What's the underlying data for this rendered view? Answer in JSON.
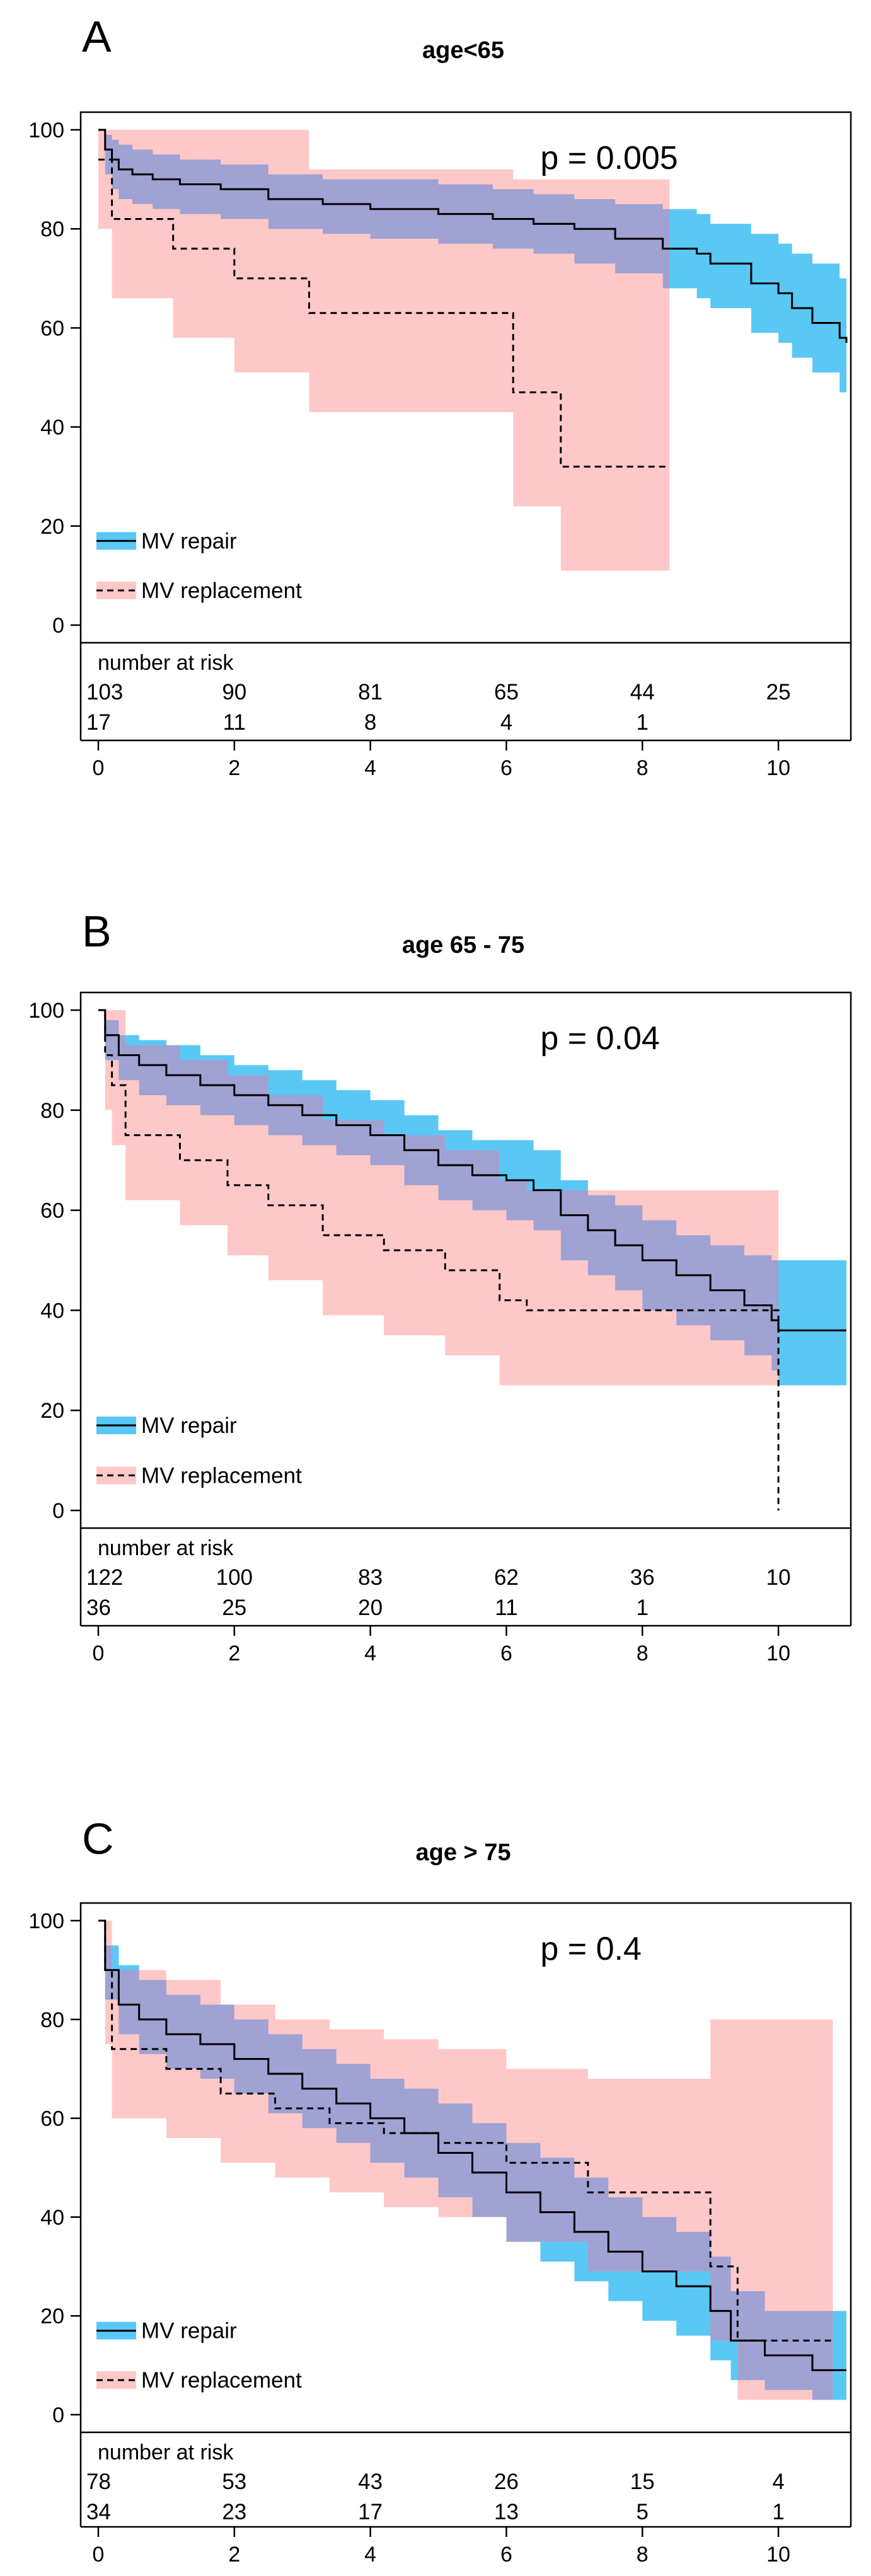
{
  "chart_data": [
    {
      "type": "line",
      "panel_label": "A",
      "title": "age<65",
      "p_value_text": "p = 0.005",
      "xlim": [
        0,
        11
      ],
      "ylim": [
        0,
        100
      ],
      "x_ticks": [
        0,
        2,
        4,
        6,
        8,
        10
      ],
      "y_ticks": [
        0,
        20,
        40,
        60,
        80,
        100
      ],
      "legend": {
        "position": "bottom-left",
        "entries": [
          "MV repair",
          "MV replacement"
        ]
      },
      "colors": {
        "repair_band": "#59C8F5",
        "replacement_band": "#FFC8C8",
        "overlap": "#9FA2D2"
      },
      "series": [
        {
          "name": "MV repair",
          "line_style": "solid",
          "x": [
            0,
            0.1,
            0.2,
            0.3,
            0.5,
            0.8,
            1.2,
            1.8,
            2.5,
            3.3,
            4.0,
            5.0,
            5.8,
            6.4,
            7.0,
            7.6,
            8.3,
            8.8,
            9.0,
            9.6,
            10.0,
            10.2,
            10.5,
            10.9,
            11.0
          ],
          "y": [
            100,
            96,
            94,
            92,
            91,
            90,
            89,
            88,
            86,
            85,
            84,
            83,
            82,
            81,
            80,
            78,
            76,
            75,
            73,
            69,
            67,
            64,
            61,
            58,
            57
          ],
          "lower": [
            100,
            91,
            88,
            86,
            85,
            84,
            83,
            82,
            80,
            79,
            78,
            77,
            76,
            75,
            73,
            71,
            68,
            66,
            64,
            59,
            57,
            54,
            51,
            47,
            46
          ],
          "upper": [
            100,
            99,
            98,
            97,
            96,
            95,
            94,
            93,
            91,
            90,
            90,
            89,
            88,
            87,
            86,
            85,
            84,
            83,
            81,
            79,
            77,
            75,
            73,
            70,
            69
          ]
        },
        {
          "name": "MV replacement",
          "line_style": "dashed",
          "x": [
            0,
            0.2,
            1.1,
            2.0,
            3.1,
            4.7,
            6.1,
            6.8,
            8.4
          ],
          "y": [
            94,
            82,
            76,
            70,
            63,
            63,
            47,
            32,
            32
          ],
          "lower": [
            80,
            66,
            58,
            51,
            43,
            43,
            24,
            11,
            11
          ],
          "upper": [
            100,
            100,
            100,
            100,
            92,
            92,
            90,
            90,
            90
          ]
        }
      ],
      "risk_table": {
        "title": "number at risk",
        "times": [
          0,
          2,
          4,
          6,
          8,
          10
        ],
        "rows": [
          {
            "group": "MV repair",
            "counts": [
              "103",
              "90",
              "81",
              "65",
              "44",
              "25"
            ]
          },
          {
            "group": "MV replacement",
            "counts": [
              "17",
              "11",
              "8",
              "4",
              "1"
            ]
          }
        ]
      }
    },
    {
      "type": "line",
      "panel_label": "B",
      "title": "age 65 - 75",
      "p_value_text": "p = 0.04",
      "xlim": [
        0,
        11
      ],
      "ylim": [
        0,
        100
      ],
      "x_ticks": [
        0,
        2,
        4,
        6,
        8,
        10
      ],
      "y_ticks": [
        0,
        20,
        40,
        60,
        80,
        100
      ],
      "legend": {
        "position": "bottom-left",
        "entries": [
          "MV repair",
          "MV replacement"
        ]
      },
      "colors": {
        "repair_band": "#59C8F5",
        "replacement_band": "#FFC8C8",
        "overlap": "#9FA2D2"
      },
      "series": [
        {
          "name": "MV repair",
          "line_style": "solid",
          "x": [
            0,
            0.1,
            0.3,
            0.6,
            1.0,
            1.5,
            2.0,
            2.5,
            3.0,
            3.5,
            4.0,
            4.5,
            5.0,
            5.5,
            6.0,
            6.4,
            6.8,
            7.2,
            7.6,
            8.0,
            8.5,
            9.0,
            9.5,
            9.9,
            10.0,
            11.0
          ],
          "y": [
            100,
            95,
            91,
            89,
            87,
            85,
            83,
            81,
            79,
            77,
            75,
            72,
            69,
            67,
            66,
            64,
            59,
            56,
            53,
            50,
            47,
            44,
            41,
            38,
            36,
            36
          ],
          "lower": [
            100,
            90,
            86,
            83,
            81,
            79,
            77,
            75,
            73,
            71,
            69,
            65,
            62,
            60,
            58,
            56,
            50,
            47,
            44,
            40,
            37,
            34,
            31,
            28,
            25,
            25
          ],
          "upper": [
            100,
            98,
            95,
            94,
            93,
            91,
            89,
            88,
            86,
            84,
            82,
            79,
            76,
            74,
            74,
            72,
            66,
            63,
            61,
            58,
            55,
            53,
            51,
            50,
            50,
            50
          ]
        },
        {
          "name": "MV replacement",
          "line_style": "dashed",
          "x": [
            0,
            0.1,
            0.2,
            0.4,
            1.2,
            1.9,
            2.5,
            3.3,
            4.2,
            5.1,
            5.9,
            6.3,
            10.0
          ],
          "y": [
            100,
            91,
            85,
            75,
            70,
            65,
            61,
            55,
            52,
            48,
            42,
            40,
            0
          ],
          "lower": [
            100,
            80,
            73,
            62,
            57,
            51,
            46,
            39,
            35,
            31,
            25,
            25,
            25
          ],
          "upper": [
            100,
            100,
            100,
            93,
            90,
            87,
            83,
            78,
            75,
            72,
            66,
            64,
            64
          ]
        }
      ],
      "risk_table": {
        "title": "number at risk",
        "times": [
          0,
          2,
          4,
          6,
          8,
          10
        ],
        "rows": [
          {
            "group": "MV repair",
            "counts": [
              "122",
              "100",
              "83",
              "62",
              "36",
              "10"
            ]
          },
          {
            "group": "MV replacement",
            "counts": [
              "36",
              "25",
              "20",
              "11",
              "1"
            ]
          }
        ]
      }
    },
    {
      "type": "line",
      "panel_label": "C",
      "title": "age > 75",
      "p_value_text": "p = 0.4",
      "xlim": [
        0,
        11
      ],
      "ylim": [
        0,
        100
      ],
      "x_ticks": [
        0,
        2,
        4,
        6,
        8,
        10
      ],
      "y_ticks": [
        0,
        20,
        40,
        60,
        80,
        100
      ],
      "legend": {
        "position": "bottom-left",
        "entries": [
          "MV repair",
          "MV replacement"
        ]
      },
      "colors": {
        "repair_band": "#59C8F5",
        "replacement_band": "#FFC8C8",
        "overlap": "#9FA2D2"
      },
      "series": [
        {
          "name": "MV repair",
          "line_style": "solid",
          "x": [
            0,
            0.1,
            0.3,
            0.6,
            1.0,
            1.5,
            2.0,
            2.5,
            3.0,
            3.5,
            4.0,
            4.5,
            5.0,
            5.5,
            6.0,
            6.5,
            7.0,
            7.5,
            8.0,
            8.5,
            9.0,
            9.3,
            9.8,
            10.5,
            11.0
          ],
          "y": [
            100,
            90,
            83,
            80,
            77,
            75,
            72,
            69,
            66,
            63,
            60,
            57,
            53,
            49,
            45,
            41,
            37,
            33,
            29,
            26,
            21,
            15,
            12,
            9,
            9
          ],
          "lower": [
            100,
            84,
            77,
            73,
            70,
            68,
            65,
            61,
            58,
            55,
            51,
            48,
            44,
            40,
            35,
            31,
            27,
            23,
            19,
            16,
            11,
            7,
            5,
            3,
            3
          ],
          "upper": [
            100,
            95,
            91,
            88,
            85,
            83,
            80,
            77,
            74,
            71,
            68,
            66,
            63,
            59,
            55,
            52,
            48,
            44,
            40,
            37,
            32,
            25,
            21,
            21,
            21
          ]
        },
        {
          "name": "MV replacement",
          "line_style": "dashed",
          "x": [
            0,
            0.1,
            0.2,
            1.0,
            1.8,
            2.6,
            3.4,
            4.2,
            5.0,
            6.0,
            7.2,
            8.0,
            9.0,
            9.4,
            10.8
          ],
          "y": [
            100,
            90,
            74,
            70,
            65,
            62,
            59,
            57,
            55,
            51,
            45,
            45,
            30,
            15,
            15
          ],
          "lower": [
            100,
            75,
            60,
            56,
            51,
            48,
            45,
            42,
            40,
            35,
            29,
            29,
            15,
            3,
            3
          ],
          "upper": [
            100,
            100,
            90,
            88,
            83,
            80,
            78,
            76,
            74,
            70,
            68,
            68,
            80,
            80,
            80
          ]
        }
      ],
      "risk_table": {
        "title": "number at risk",
        "times": [
          0,
          2,
          4,
          6,
          8,
          10
        ],
        "rows": [
          {
            "group": "MV repair",
            "counts": [
              "78",
              "53",
              "43",
              "26",
              "15",
              "4"
            ]
          },
          {
            "group": "MV replacement",
            "counts": [
              "34",
              "23",
              "17",
              "13",
              "5",
              "1"
            ]
          }
        ]
      }
    }
  ]
}
